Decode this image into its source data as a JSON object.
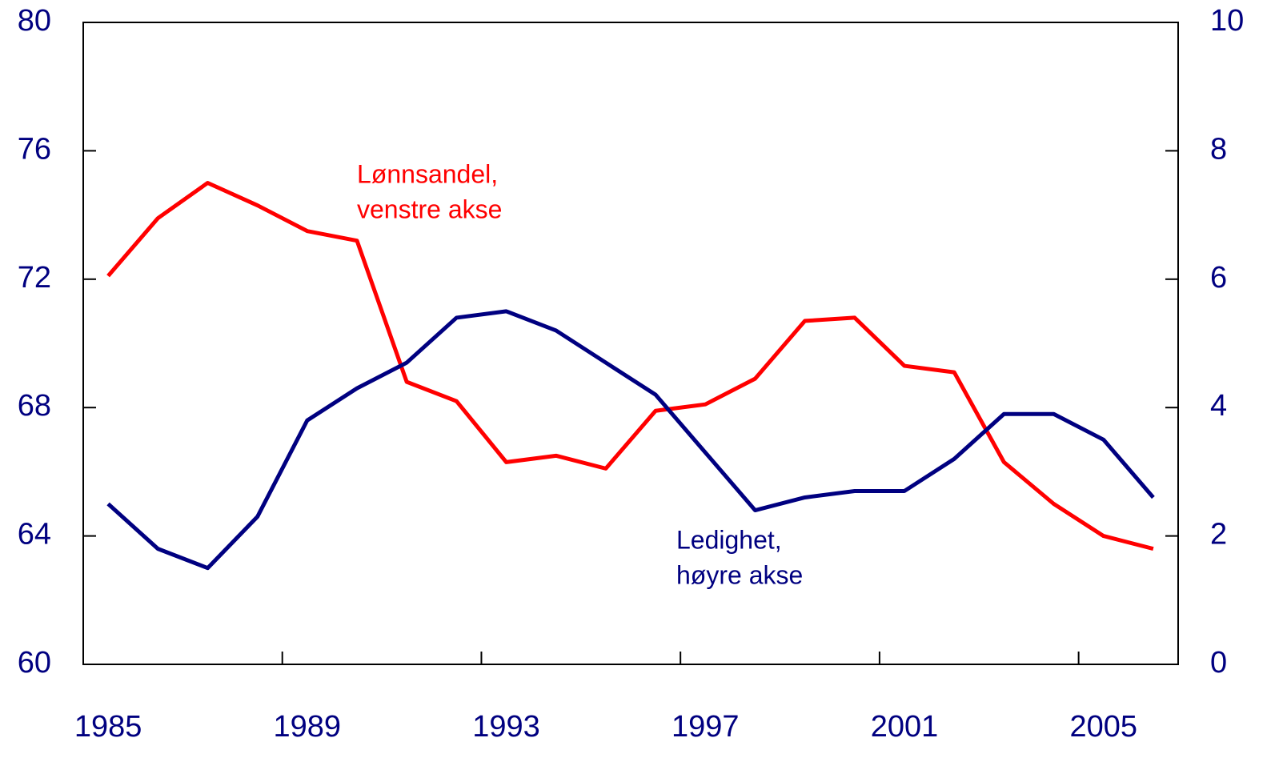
{
  "chart_data": {
    "type": "line",
    "categories": [
      "1985",
      null,
      null,
      null,
      "1989",
      null,
      null,
      null,
      "1993",
      null,
      null,
      null,
      "1997",
      null,
      null,
      null,
      "2001",
      null,
      null,
      null,
      "2005",
      null
    ],
    "series": [
      {
        "name": "Lønnsandel, venstre akse",
        "color": "#ff0000",
        "axis": "y",
        "values": [
          72.1,
          73.9,
          75.0,
          74.3,
          73.5,
          73.2,
          68.8,
          68.2,
          66.3,
          66.5,
          66.1,
          67.9,
          68.1,
          68.9,
          70.7,
          70.8,
          69.3,
          69.1,
          66.3,
          65.0,
          64.0,
          63.6
        ]
      },
      {
        "name": "Ledighet, høyre akse",
        "color": "#000080",
        "axis": "y2",
        "values": [
          2.5,
          1.8,
          1.5,
          2.3,
          3.8,
          4.3,
          4.7,
          5.4,
          5.5,
          5.2,
          4.7,
          4.2,
          3.3,
          2.4,
          2.6,
          2.7,
          2.7,
          3.2,
          3.9,
          3.9,
          3.5,
          2.6
        ]
      }
    ],
    "annotations": [
      {
        "lines": [
          "Lønnsandel,",
          "venstre akse"
        ],
        "color": "#ff0000"
      },
      {
        "lines": [
          "Ledighet,",
          "høyre akse"
        ],
        "color": "#000080"
      }
    ],
    "ylim": [
      60,
      80
    ],
    "yticks": [
      60,
      64,
      68,
      72,
      76,
      80
    ],
    "y2lim": [
      0,
      10
    ],
    "y2ticks": [
      0,
      2,
      4,
      6,
      8,
      10
    ]
  }
}
